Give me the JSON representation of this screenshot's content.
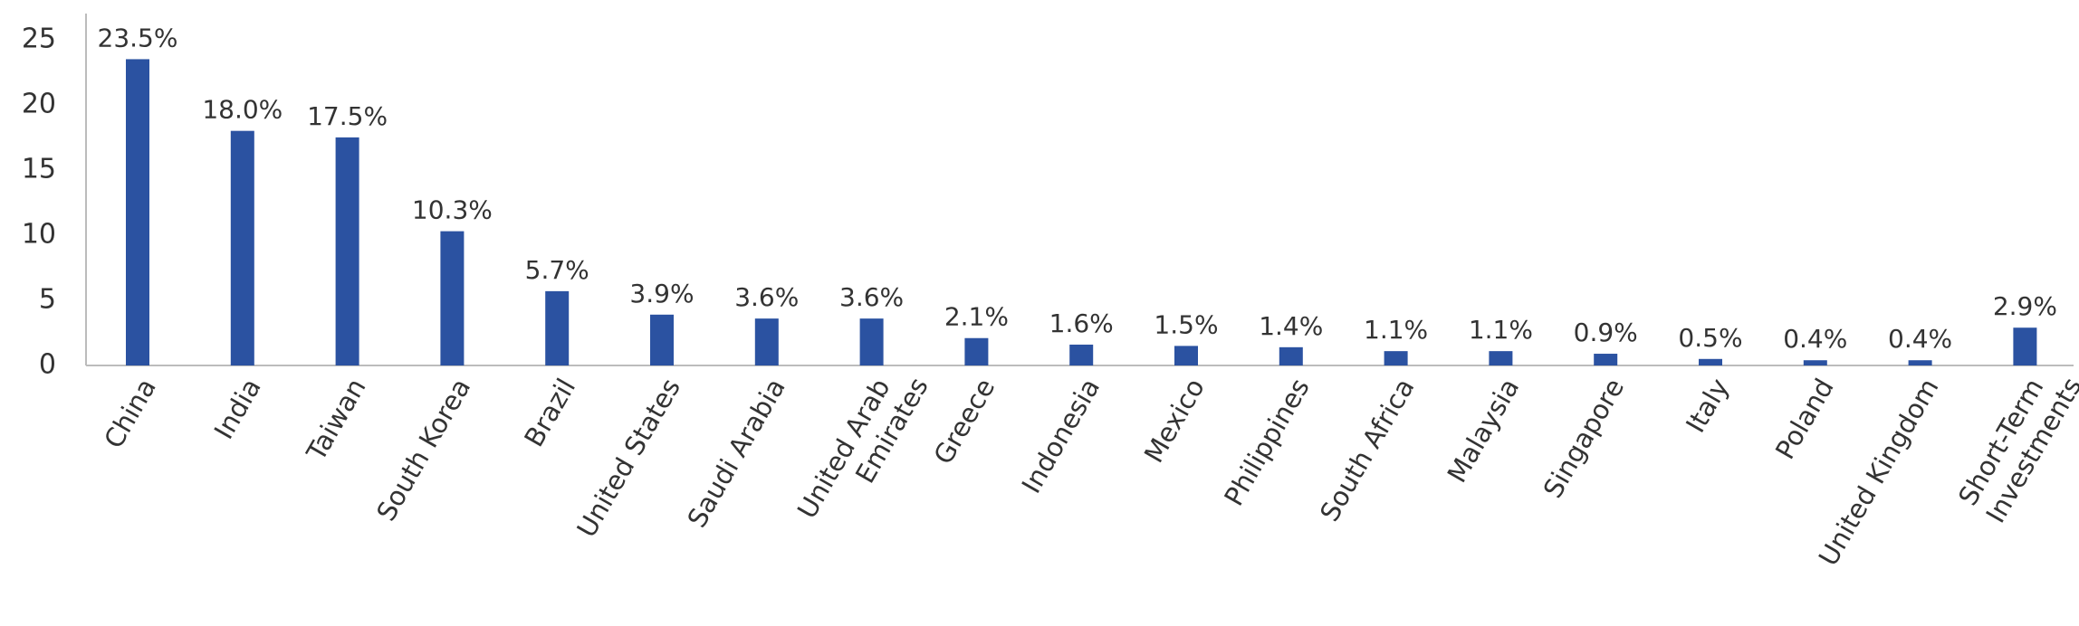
{
  "chart_data": {
    "type": "bar",
    "categories": [
      "China",
      "India",
      "Taiwan",
      "South Korea",
      "Brazil",
      "United States",
      "Saudi Arabia",
      "United Arab\nEmirates",
      "Greece",
      "Indonesia",
      "Mexico",
      "Philippines",
      "South Africa",
      "Malaysia",
      "Singapore",
      "Italy",
      "Poland",
      "United Kingdom",
      "Short-Term\nInvestments"
    ],
    "values": [
      23.5,
      18.0,
      17.5,
      10.3,
      5.7,
      3.9,
      3.6,
      3.6,
      2.1,
      1.6,
      1.5,
      1.4,
      1.1,
      1.1,
      0.9,
      0.5,
      0.4,
      0.4,
      2.9
    ],
    "value_labels": [
      "23.5%",
      "18.0%",
      "17.5%",
      "10.3%",
      "5.7%",
      "3.9%",
      "3.6%",
      "3.6%",
      "2.1%",
      "1.6%",
      "1.5%",
      "1.4%",
      "1.1%",
      "1.1%",
      "0.9%",
      "0.5%",
      "0.4%",
      "0.4%",
      "2.9%"
    ],
    "color": "#2b52a1",
    "ylim": [
      0,
      27
    ],
    "yticks": [
      0,
      5,
      10,
      15,
      20,
      25
    ],
    "grid": false
  }
}
